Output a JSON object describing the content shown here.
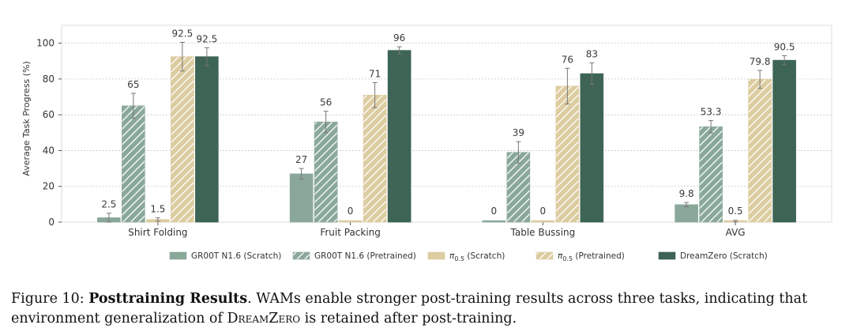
{
  "chart_data": {
    "type": "bar",
    "title": "",
    "xlabel": "",
    "ylabel": "Average Task Progress (%)",
    "ylim": [
      0,
      110
    ],
    "yticks": [
      0,
      20,
      40,
      60,
      80,
      100
    ],
    "grid": "horizontal dotted",
    "categories": [
      "Shirt Folding",
      "Fruit Packing",
      "Table Bussing",
      "AVG"
    ],
    "series": [
      {
        "name": "GR00T N1.6 (Scratch)",
        "color": "#8aa89a",
        "hatched": false,
        "values": [
          2.5,
          27,
          0,
          9.8
        ],
        "errors": [
          2.5,
          3,
          0,
          1.2
        ],
        "labels": [
          "2.5",
          "27",
          "0",
          "9.8"
        ]
      },
      {
        "name": "GR00T N1.6 (Pretrained)",
        "color": "#8aa89a",
        "hatched": true,
        "values": [
          65,
          56,
          39,
          53.3
        ],
        "errors": [
          7,
          6,
          6,
          3.5
        ],
        "labels": [
          "65",
          "56",
          "39",
          "53.3"
        ]
      },
      {
        "name": "π0.5 (Scratch)",
        "name_base": "π",
        "name_sub": "0.5",
        "name_suffix": " (Scratch)",
        "color": "#dccca0",
        "hatched": false,
        "values": [
          1.5,
          0,
          0,
          0.5
        ],
        "errors": [
          1,
          0,
          0,
          0.5
        ],
        "labels": [
          "1.5",
          "0",
          "0",
          "0.5"
        ]
      },
      {
        "name": "π0.5 (Pretrained)",
        "name_base": "π",
        "name_sub": "0.5",
        "name_suffix": " (Pretrained)",
        "color": "#dccca0",
        "hatched": true,
        "values": [
          92.5,
          71,
          76,
          79.8
        ],
        "errors": [
          8,
          7,
          10,
          5
        ],
        "labels": [
          "92.5",
          "71",
          "76",
          "79.8"
        ]
      },
      {
        "name": "DreamZero (Scratch)",
        "color": "#3d6454",
        "hatched": false,
        "values": [
          92.5,
          96,
          83,
          90.5
        ],
        "errors": [
          5,
          2,
          6,
          2.5
        ],
        "labels": [
          "92.5",
          "96",
          "83",
          "90.5"
        ]
      }
    ],
    "legend_position": "bottom-center"
  },
  "caption": {
    "label": "Figure 10: ",
    "bold": "Posttraining Results",
    "text_1": ". WAMs enable stronger post-training results across three tasks, indicating that environment generalization of ",
    "smallcaps": "DreamZero",
    "text_2": " is retained after post-training."
  }
}
